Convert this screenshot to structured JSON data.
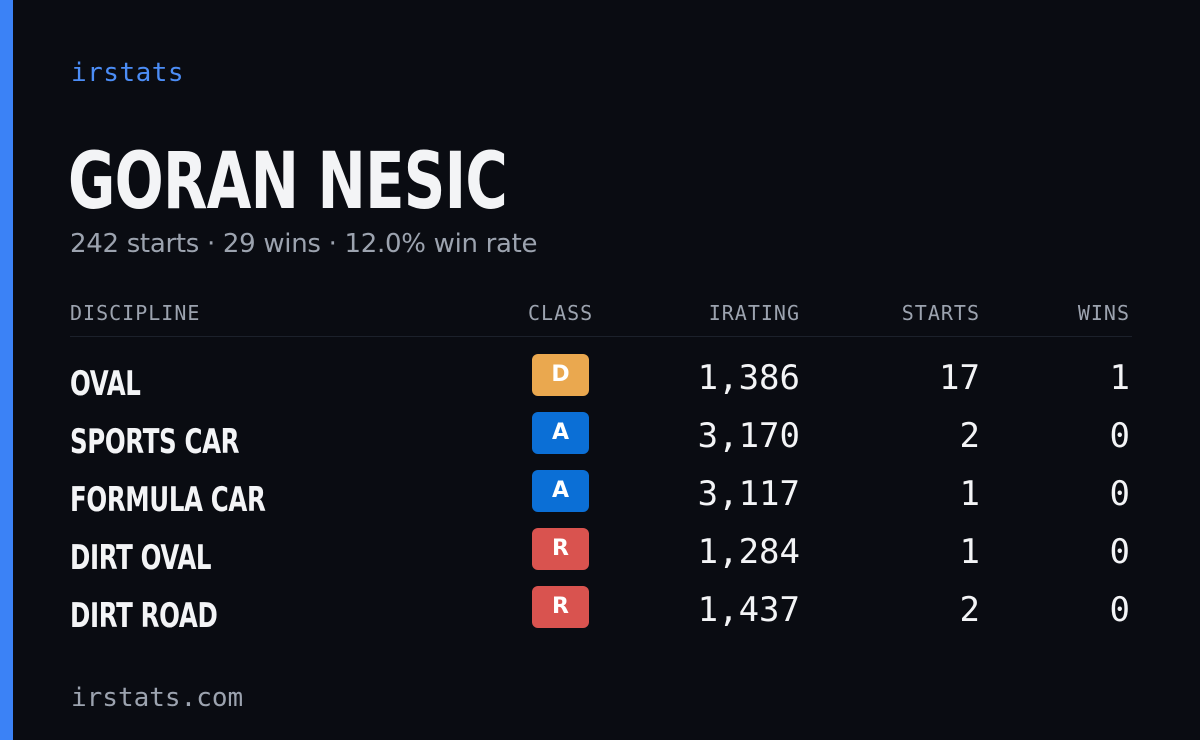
{
  "brand": {
    "label": "irstats",
    "accent_color": "#3b82f6"
  },
  "driver": {
    "name": "GORAN NESIC",
    "summary": "242 starts · 29 wins · 12.0% win rate"
  },
  "table": {
    "headers": {
      "discipline": "DISCIPLINE",
      "class": "CLASS",
      "irating": "IRATING",
      "starts": "STARTS",
      "wins": "WINS"
    },
    "rows": [
      {
        "discipline": "OVAL",
        "class": "D",
        "class_color": "#eaa84f",
        "irating": "1,386",
        "starts": "17",
        "wins": "1"
      },
      {
        "discipline": "SPORTS CAR",
        "class": "A",
        "class_color": "#0b6fd6",
        "irating": "3,170",
        "starts": "2",
        "wins": "0"
      },
      {
        "discipline": "FORMULA CAR",
        "class": "A",
        "class_color": "#0b6fd6",
        "irating": "3,117",
        "starts": "1",
        "wins": "0"
      },
      {
        "discipline": "DIRT OVAL",
        "class": "R",
        "class_color": "#d9534f",
        "irating": "1,284",
        "starts": "1",
        "wins": "0"
      },
      {
        "discipline": "DIRT ROAD",
        "class": "R",
        "class_color": "#d9534f",
        "irating": "1,437",
        "starts": "2",
        "wins": "0"
      }
    ]
  },
  "footer": {
    "url": "irstats.com"
  }
}
